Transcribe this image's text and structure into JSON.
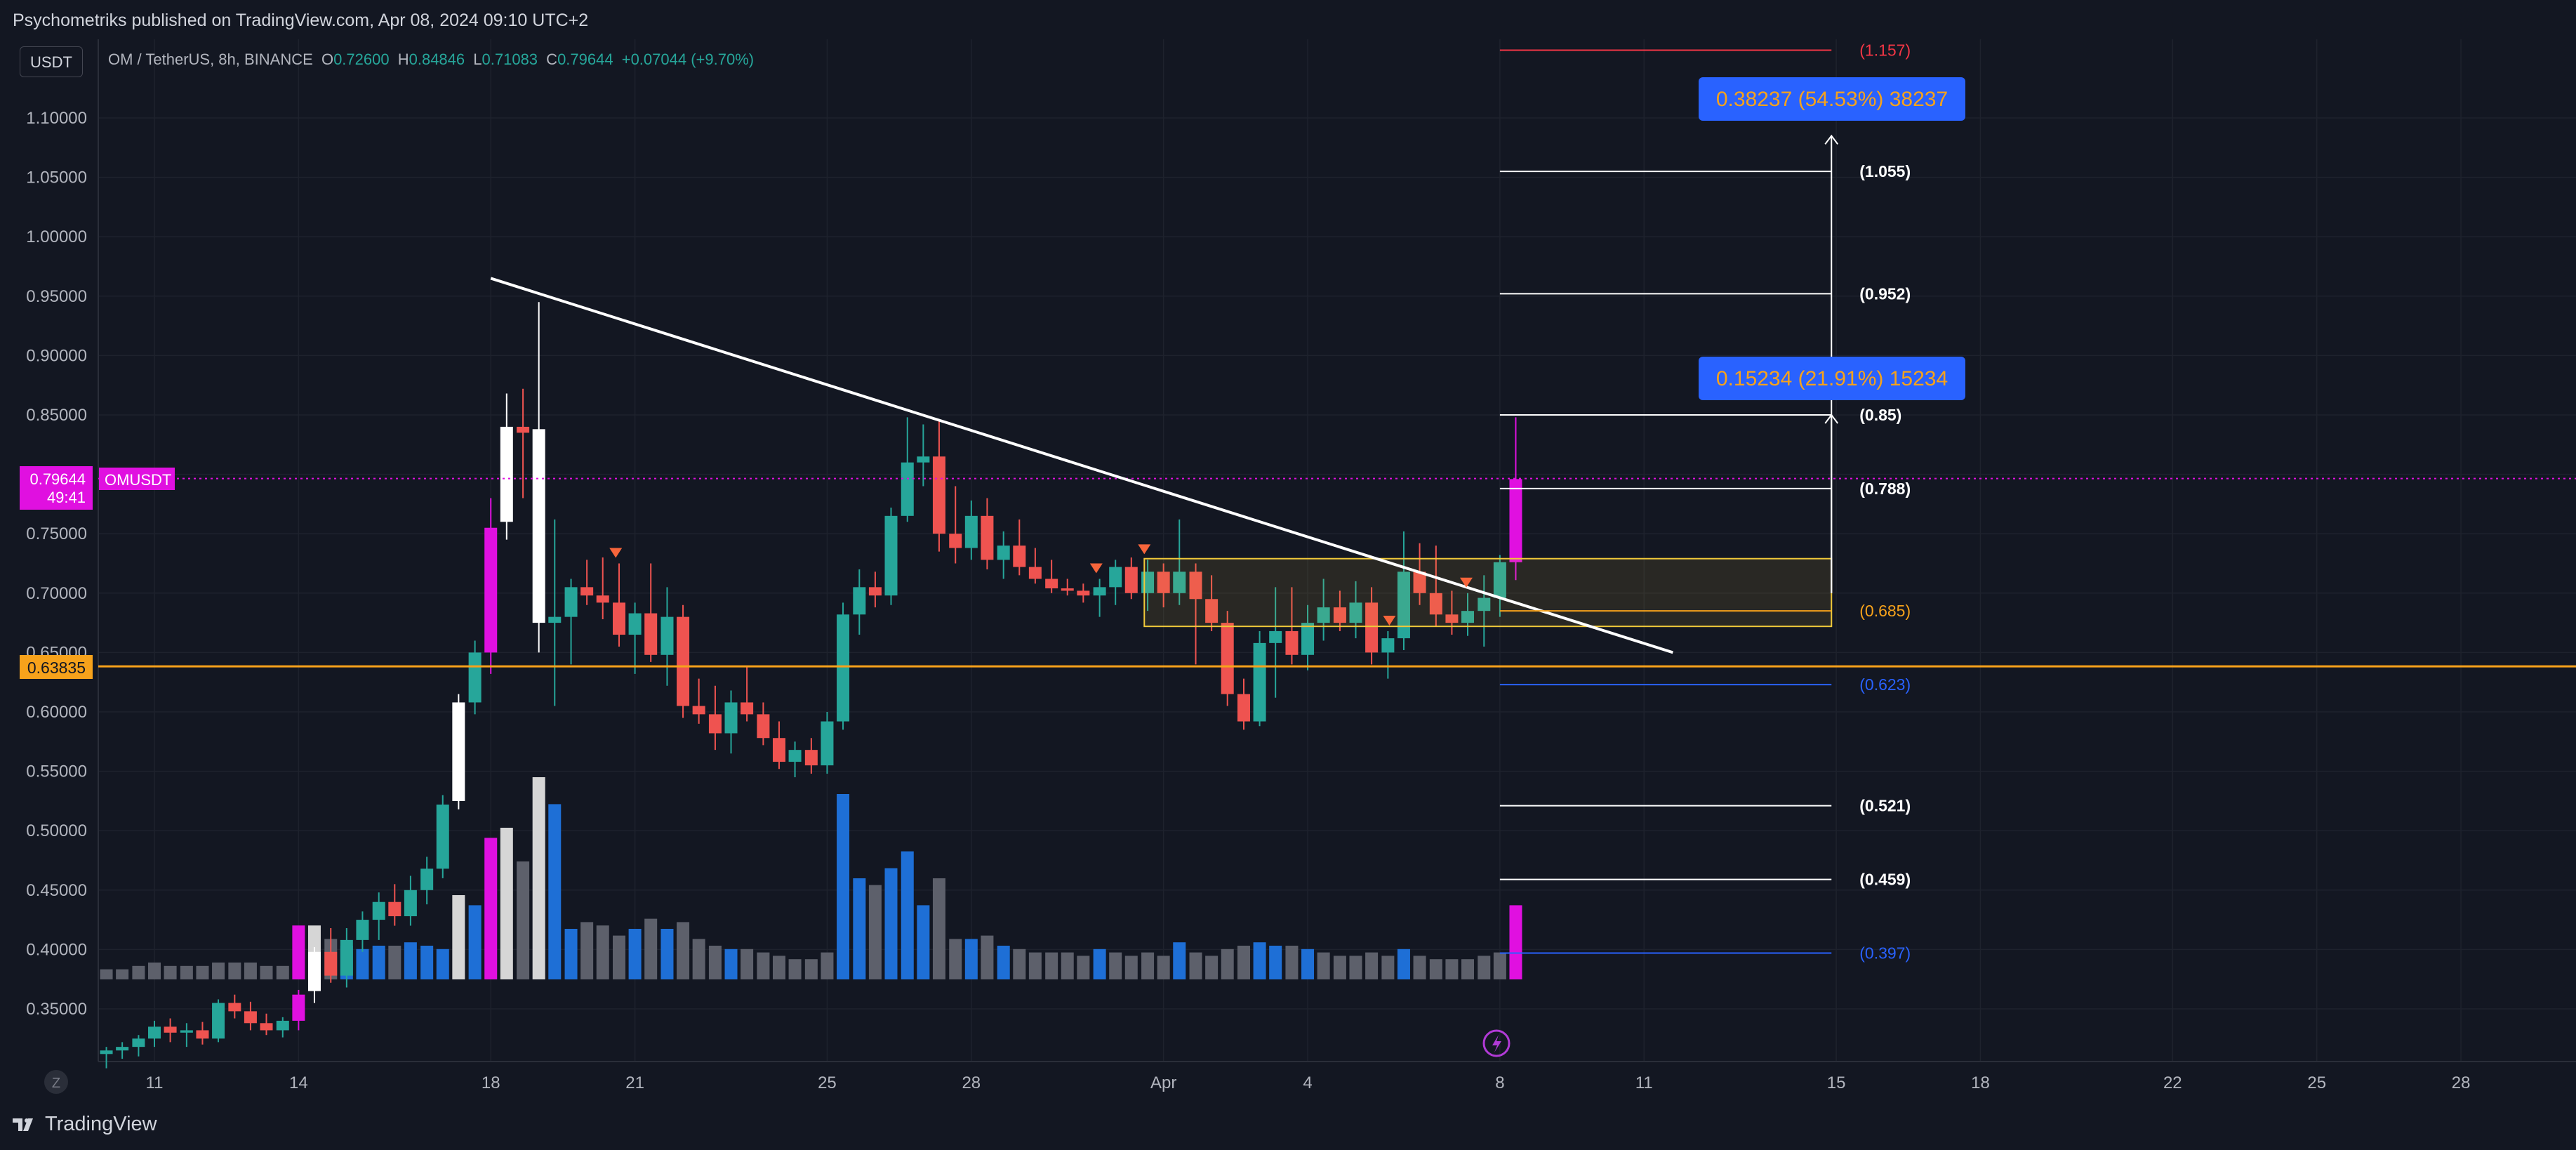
{
  "header": {
    "publish_text": "Psychometriks published on TradingView.com, Apr 08, 2024 09:10 UTC+2"
  },
  "toolbar": {
    "currency": "USDT"
  },
  "legend": {
    "symbol": "OM / TetherUS, 8h, BINANCE",
    "o_label": "O",
    "o_value": "0.72600",
    "h_label": "H",
    "h_value": "0.84846",
    "l_label": "L",
    "l_value": "0.71083",
    "c_label": "C",
    "c_value": "0.79644",
    "change": "+0.07044 (+9.70%)"
  },
  "footer": {
    "brand": "TradingView",
    "z_button": "Z"
  },
  "colors": {
    "background": "#131722",
    "up": "#26a69a",
    "down": "#ef5350",
    "magenta": "#e010e0",
    "white_candle": "#ffffff",
    "support": "#f7a21b",
    "fib_white": "#ffffff",
    "fib_red": "#f23645",
    "fib_orange": "#f7a21b",
    "fib_blue": "#2962ff",
    "measure_box": "#2962ff",
    "zone": "#f0c93a"
  },
  "chart_data": {
    "type": "candlestick",
    "symbol": "OMUSDT",
    "interval": "8h",
    "ylim": [
      0.315,
      1.15
    ],
    "y_ticks": [
      "1.10000",
      "1.05000",
      "1.00000",
      "0.95000",
      "0.90000",
      "0.85000",
      "0.80000",
      "0.75000",
      "0.70000",
      "0.65000",
      "0.60000",
      "0.55000",
      "0.50000",
      "0.45000",
      "0.40000",
      "0.35000"
    ],
    "x_ticks": [
      {
        "label": "11",
        "day": 11
      },
      {
        "label": "14",
        "day": 14
      },
      {
        "label": "18",
        "day": 18
      },
      {
        "label": "21",
        "day": 21
      },
      {
        "label": "25",
        "day": 25
      },
      {
        "label": "28",
        "day": 28
      },
      {
        "label": "Apr",
        "day": 32
      },
      {
        "label": "4",
        "day": 35
      },
      {
        "label": "8",
        "day": 39
      },
      {
        "label": "11",
        "day": 42
      },
      {
        "label": "15",
        "day": 46
      },
      {
        "label": "18",
        "day": 49
      },
      {
        "label": "22",
        "day": 53
      },
      {
        "label": "25",
        "day": 56
      },
      {
        "label": "28",
        "day": 59
      }
    ],
    "x_axis_note": "day index: March dates as-is, April dates = 31 + date",
    "current_price": {
      "value": "0.79644",
      "label": "OMUSDT",
      "countdown": "49:41"
    },
    "support_line": {
      "value": "0.63835"
    },
    "trendline": {
      "from": {
        "day": 18,
        "price": 0.965
      },
      "to": {
        "day": 42.6,
        "price": 0.65
      }
    },
    "zone": {
      "day_start": 31.6,
      "day_end": 45.9,
      "top": 0.729,
      "bottom": 0.672
    },
    "markers_day": [
      20.6,
      30.6,
      31.6,
      36.7,
      38.3
    ],
    "fib_levels": [
      {
        "label": "(1.157)",
        "value": 1.157,
        "color": "red"
      },
      {
        "label": "(1.055)",
        "value": 1.055,
        "color": "white"
      },
      {
        "label": "(0.952)",
        "value": 0.952,
        "color": "white"
      },
      {
        "label": "(0.85)",
        "value": 0.85,
        "color": "white"
      },
      {
        "label": "(0.788)",
        "value": 0.788,
        "color": "white"
      },
      {
        "label": "(0.685)",
        "value": 0.685,
        "color": "orange"
      },
      {
        "label": "(0.623)",
        "value": 0.623,
        "color": "blue"
      },
      {
        "label": "(0.521)",
        "value": 0.521,
        "color": "white"
      },
      {
        "label": "(0.459)",
        "value": 0.459,
        "color": "white"
      },
      {
        "label": "(0.397)",
        "value": 0.397,
        "color": "blue"
      }
    ],
    "fib_day_range": [
      39,
      45.9
    ],
    "measures": [
      {
        "text": "0.38237 (54.53%) 38237",
        "from": 0.7,
        "to": 1.085
      },
      {
        "text": "0.15234 (21.91%) 15234",
        "from": 0.7,
        "to": 0.85
      }
    ],
    "candles": [
      {
        "day": 10.0,
        "o": 0.312,
        "h": 0.318,
        "l": 0.3,
        "c": 0.315,
        "v": 3,
        "t": "up"
      },
      {
        "day": 10.33,
        "o": 0.315,
        "h": 0.322,
        "l": 0.308,
        "c": 0.318,
        "v": 3,
        "t": "up"
      },
      {
        "day": 10.67,
        "o": 0.318,
        "h": 0.328,
        "l": 0.31,
        "c": 0.325,
        "v": 4,
        "t": "up"
      },
      {
        "day": 11.0,
        "o": 0.325,
        "h": 0.34,
        "l": 0.318,
        "c": 0.335,
        "v": 5,
        "t": "up"
      },
      {
        "day": 11.33,
        "o": 0.335,
        "h": 0.342,
        "l": 0.322,
        "c": 0.33,
        "v": 4,
        "t": "down"
      },
      {
        "day": 11.67,
        "o": 0.33,
        "h": 0.338,
        "l": 0.318,
        "c": 0.332,
        "v": 4,
        "t": "up"
      },
      {
        "day": 12.0,
        "o": 0.332,
        "h": 0.339,
        "l": 0.32,
        "c": 0.325,
        "v": 4,
        "t": "down"
      },
      {
        "day": 12.33,
        "o": 0.325,
        "h": 0.358,
        "l": 0.322,
        "c": 0.355,
        "v": 5,
        "t": "up"
      },
      {
        "day": 12.67,
        "o": 0.355,
        "h": 0.362,
        "l": 0.342,
        "c": 0.348,
        "v": 5,
        "t": "down"
      },
      {
        "day": 13.0,
        "o": 0.348,
        "h": 0.356,
        "l": 0.332,
        "c": 0.338,
        "v": 5,
        "t": "down"
      },
      {
        "day": 13.33,
        "o": 0.338,
        "h": 0.346,
        "l": 0.328,
        "c": 0.332,
        "v": 4,
        "t": "down"
      },
      {
        "day": 13.67,
        "o": 0.332,
        "h": 0.343,
        "l": 0.326,
        "c": 0.34,
        "v": 4,
        "t": "up"
      },
      {
        "day": 14.0,
        "o": 0.34,
        "h": 0.366,
        "l": 0.332,
        "c": 0.362,
        "v": 16,
        "t": "magenta"
      },
      {
        "day": 14.33,
        "o": 0.365,
        "h": 0.402,
        "l": 0.355,
        "c": 0.398,
        "v": 16,
        "t": "white"
      },
      {
        "day": 14.67,
        "o": 0.398,
        "h": 0.418,
        "l": 0.372,
        "c": 0.378,
        "v": 12,
        "t": "down"
      },
      {
        "day": 15.0,
        "o": 0.378,
        "h": 0.418,
        "l": 0.368,
        "c": 0.408,
        "v": 10,
        "t": "up"
      },
      {
        "day": 15.33,
        "o": 0.408,
        "h": 0.432,
        "l": 0.398,
        "c": 0.425,
        "v": 9,
        "t": "up"
      },
      {
        "day": 15.67,
        "o": 0.425,
        "h": 0.448,
        "l": 0.408,
        "c": 0.44,
        "v": 10,
        "t": "up"
      },
      {
        "day": 16.0,
        "o": 0.44,
        "h": 0.455,
        "l": 0.42,
        "c": 0.428,
        "v": 10,
        "t": "down"
      },
      {
        "day": 16.33,
        "o": 0.428,
        "h": 0.462,
        "l": 0.42,
        "c": 0.45,
        "v": 11,
        "t": "up"
      },
      {
        "day": 16.67,
        "o": 0.45,
        "h": 0.478,
        "l": 0.438,
        "c": 0.468,
        "v": 10,
        "t": "up"
      },
      {
        "day": 17.0,
        "o": 0.468,
        "h": 0.53,
        "l": 0.46,
        "c": 0.522,
        "v": 9,
        "t": "up"
      },
      {
        "day": 17.33,
        "o": 0.525,
        "h": 0.615,
        "l": 0.518,
        "c": 0.608,
        "v": 25,
        "t": "white"
      },
      {
        "day": 17.67,
        "o": 0.608,
        "h": 0.66,
        "l": 0.598,
        "c": 0.65,
        "v": 22,
        "t": "up"
      },
      {
        "day": 18.0,
        "o": 0.65,
        "h": 0.78,
        "l": 0.632,
        "c": 0.755,
        "v": 42,
        "t": "magenta"
      },
      {
        "day": 18.33,
        "o": 0.76,
        "h": 0.868,
        "l": 0.745,
        "c": 0.84,
        "v": 45,
        "t": "white"
      },
      {
        "day": 18.67,
        "o": 0.84,
        "h": 0.872,
        "l": 0.78,
        "c": 0.835,
        "v": 35,
        "t": "down"
      },
      {
        "day": 19.0,
        "o": 0.838,
        "h": 0.945,
        "l": 0.65,
        "c": 0.675,
        "v": 60,
        "t": "white"
      },
      {
        "day": 19.33,
        "o": 0.675,
        "h": 0.762,
        "l": 0.605,
        "c": 0.68,
        "v": 52,
        "t": "up"
      },
      {
        "day": 19.67,
        "o": 0.68,
        "h": 0.712,
        "l": 0.64,
        "c": 0.705,
        "v": 15,
        "t": "up"
      },
      {
        "day": 20.0,
        "o": 0.705,
        "h": 0.728,
        "l": 0.69,
        "c": 0.698,
        "v": 17,
        "t": "down"
      },
      {
        "day": 20.33,
        "o": 0.698,
        "h": 0.73,
        "l": 0.678,
        "c": 0.692,
        "v": 16,
        "t": "down"
      },
      {
        "day": 20.67,
        "o": 0.692,
        "h": 0.725,
        "l": 0.655,
        "c": 0.665,
        "v": 13,
        "t": "down"
      },
      {
        "day": 21.0,
        "o": 0.665,
        "h": 0.692,
        "l": 0.632,
        "c": 0.683,
        "v": 15,
        "t": "up"
      },
      {
        "day": 21.33,
        "o": 0.683,
        "h": 0.725,
        "l": 0.642,
        "c": 0.648,
        "v": 18,
        "t": "down"
      },
      {
        "day": 21.67,
        "o": 0.648,
        "h": 0.705,
        "l": 0.622,
        "c": 0.68,
        "v": 15,
        "t": "up"
      },
      {
        "day": 22.0,
        "o": 0.68,
        "h": 0.69,
        "l": 0.595,
        "c": 0.605,
        "v": 17,
        "t": "down"
      },
      {
        "day": 22.33,
        "o": 0.605,
        "h": 0.628,
        "l": 0.59,
        "c": 0.598,
        "v": 12,
        "t": "down"
      },
      {
        "day": 22.67,
        "o": 0.598,
        "h": 0.622,
        "l": 0.568,
        "c": 0.582,
        "v": 10,
        "t": "down"
      },
      {
        "day": 23.0,
        "o": 0.582,
        "h": 0.618,
        "l": 0.565,
        "c": 0.608,
        "v": 9,
        "t": "up"
      },
      {
        "day": 23.33,
        "o": 0.608,
        "h": 0.638,
        "l": 0.592,
        "c": 0.598,
        "v": 9,
        "t": "down"
      },
      {
        "day": 23.67,
        "o": 0.598,
        "h": 0.608,
        "l": 0.572,
        "c": 0.578,
        "v": 8,
        "t": "down"
      },
      {
        "day": 24.0,
        "o": 0.578,
        "h": 0.592,
        "l": 0.552,
        "c": 0.558,
        "v": 7,
        "t": "down"
      },
      {
        "day": 24.33,
        "o": 0.558,
        "h": 0.575,
        "l": 0.545,
        "c": 0.568,
        "v": 6,
        "t": "up"
      },
      {
        "day": 24.67,
        "o": 0.568,
        "h": 0.578,
        "l": 0.548,
        "c": 0.555,
        "v": 6,
        "t": "down"
      },
      {
        "day": 25.0,
        "o": 0.555,
        "h": 0.6,
        "l": 0.548,
        "c": 0.592,
        "v": 8,
        "t": "up"
      },
      {
        "day": 25.33,
        "o": 0.592,
        "h": 0.692,
        "l": 0.585,
        "c": 0.682,
        "v": 55,
        "t": "up"
      },
      {
        "day": 25.67,
        "o": 0.682,
        "h": 0.72,
        "l": 0.665,
        "c": 0.705,
        "v": 30,
        "t": "up"
      },
      {
        "day": 26.0,
        "o": 0.705,
        "h": 0.718,
        "l": 0.688,
        "c": 0.698,
        "v": 28,
        "t": "down"
      },
      {
        "day": 26.33,
        "o": 0.698,
        "h": 0.772,
        "l": 0.69,
        "c": 0.765,
        "v": 33,
        "t": "up"
      },
      {
        "day": 26.67,
        "o": 0.765,
        "h": 0.848,
        "l": 0.76,
        "c": 0.81,
        "v": 38,
        "t": "up"
      },
      {
        "day": 27.0,
        "o": 0.81,
        "h": 0.842,
        "l": 0.79,
        "c": 0.815,
        "v": 22,
        "t": "up"
      },
      {
        "day": 27.33,
        "o": 0.815,
        "h": 0.845,
        "l": 0.735,
        "c": 0.75,
        "v": 30,
        "t": "down"
      },
      {
        "day": 27.67,
        "o": 0.75,
        "h": 0.79,
        "l": 0.725,
        "c": 0.738,
        "v": 12,
        "t": "down"
      },
      {
        "day": 28.0,
        "o": 0.738,
        "h": 0.778,
        "l": 0.728,
        "c": 0.765,
        "v": 12,
        "t": "up"
      },
      {
        "day": 28.33,
        "o": 0.765,
        "h": 0.78,
        "l": 0.72,
        "c": 0.728,
        "v": 13,
        "t": "down"
      },
      {
        "day": 28.67,
        "o": 0.728,
        "h": 0.752,
        "l": 0.712,
        "c": 0.74,
        "v": 10,
        "t": "up"
      },
      {
        "day": 29.0,
        "o": 0.74,
        "h": 0.762,
        "l": 0.715,
        "c": 0.722,
        "v": 9,
        "t": "down"
      },
      {
        "day": 29.33,
        "o": 0.722,
        "h": 0.738,
        "l": 0.708,
        "c": 0.712,
        "v": 8,
        "t": "down"
      },
      {
        "day": 29.67,
        "o": 0.712,
        "h": 0.728,
        "l": 0.7,
        "c": 0.704,
        "v": 8,
        "t": "down"
      },
      {
        "day": 30.0,
        "o": 0.704,
        "h": 0.712,
        "l": 0.698,
        "c": 0.702,
        "v": 8,
        "t": "down"
      },
      {
        "day": 30.33,
        "o": 0.702,
        "h": 0.708,
        "l": 0.692,
        "c": 0.698,
        "v": 7,
        "t": "down"
      },
      {
        "day": 30.67,
        "o": 0.698,
        "h": 0.712,
        "l": 0.68,
        "c": 0.705,
        "v": 9,
        "t": "up"
      },
      {
        "day": 31.0,
        "o": 0.705,
        "h": 0.728,
        "l": 0.69,
        "c": 0.722,
        "v": 8,
        "t": "up"
      },
      {
        "day": 31.33,
        "o": 0.722,
        "h": 0.73,
        "l": 0.695,
        "c": 0.7,
        "v": 7,
        "t": "down"
      },
      {
        "day": 31.67,
        "o": 0.7,
        "h": 0.728,
        "l": 0.685,
        "c": 0.718,
        "v": 8,
        "t": "up"
      },
      {
        "day": 32.0,
        "o": 0.718,
        "h": 0.725,
        "l": 0.688,
        "c": 0.7,
        "v": 7,
        "t": "down"
      },
      {
        "day": 32.33,
        "o": 0.7,
        "h": 0.762,
        "l": 0.69,
        "c": 0.718,
        "v": 11,
        "t": "up"
      },
      {
        "day": 32.67,
        "o": 0.718,
        "h": 0.725,
        "l": 0.64,
        "c": 0.695,
        "v": 8,
        "t": "down"
      },
      {
        "day": 33.0,
        "o": 0.695,
        "h": 0.715,
        "l": 0.668,
        "c": 0.675,
        "v": 7,
        "t": "down"
      },
      {
        "day": 33.33,
        "o": 0.675,
        "h": 0.685,
        "l": 0.605,
        "c": 0.615,
        "v": 9,
        "t": "down"
      },
      {
        "day": 33.67,
        "o": 0.615,
        "h": 0.628,
        "l": 0.585,
        "c": 0.592,
        "v": 10,
        "t": "down"
      },
      {
        "day": 34.0,
        "o": 0.592,
        "h": 0.668,
        "l": 0.588,
        "c": 0.658,
        "v": 11,
        "t": "up"
      },
      {
        "day": 34.33,
        "o": 0.658,
        "h": 0.705,
        "l": 0.612,
        "c": 0.668,
        "v": 10,
        "t": "up"
      },
      {
        "day": 34.67,
        "o": 0.668,
        "h": 0.705,
        "l": 0.64,
        "c": 0.648,
        "v": 10,
        "t": "down"
      },
      {
        "day": 35.0,
        "o": 0.648,
        "h": 0.69,
        "l": 0.635,
        "c": 0.675,
        "v": 9,
        "t": "up"
      },
      {
        "day": 35.33,
        "o": 0.675,
        "h": 0.712,
        "l": 0.66,
        "c": 0.688,
        "v": 8,
        "t": "up"
      },
      {
        "day": 35.67,
        "o": 0.688,
        "h": 0.702,
        "l": 0.668,
        "c": 0.675,
        "v": 7,
        "t": "down"
      },
      {
        "day": 36.0,
        "o": 0.675,
        "h": 0.71,
        "l": 0.662,
        "c": 0.692,
        "v": 7,
        "t": "up"
      },
      {
        "day": 36.33,
        "o": 0.692,
        "h": 0.705,
        "l": 0.64,
        "c": 0.65,
        "v": 8,
        "t": "down"
      },
      {
        "day": 36.67,
        "o": 0.65,
        "h": 0.668,
        "l": 0.628,
        "c": 0.662,
        "v": 7,
        "t": "up"
      },
      {
        "day": 37.0,
        "o": 0.662,
        "h": 0.752,
        "l": 0.652,
        "c": 0.718,
        "v": 9,
        "t": "up"
      },
      {
        "day": 37.33,
        "o": 0.718,
        "h": 0.742,
        "l": 0.69,
        "c": 0.7,
        "v": 7,
        "t": "down"
      },
      {
        "day": 37.67,
        "o": 0.7,
        "h": 0.74,
        "l": 0.672,
        "c": 0.682,
        "v": 6,
        "t": "down"
      },
      {
        "day": 38.0,
        "o": 0.682,
        "h": 0.702,
        "l": 0.665,
        "c": 0.675,
        "v": 6,
        "t": "down"
      },
      {
        "day": 38.33,
        "o": 0.675,
        "h": 0.7,
        "l": 0.664,
        "c": 0.685,
        "v": 6,
        "t": "up"
      },
      {
        "day": 38.67,
        "o": 0.685,
        "h": 0.715,
        "l": 0.655,
        "c": 0.696,
        "v": 7,
        "t": "up"
      },
      {
        "day": 39.0,
        "o": 0.696,
        "h": 0.732,
        "l": 0.68,
        "c": 0.726,
        "v": 8,
        "t": "up"
      },
      {
        "day": 39.33,
        "o": 0.726,
        "h": 0.848,
        "l": 0.711,
        "c": 0.796,
        "v": 22,
        "t": "magenta"
      }
    ]
  }
}
